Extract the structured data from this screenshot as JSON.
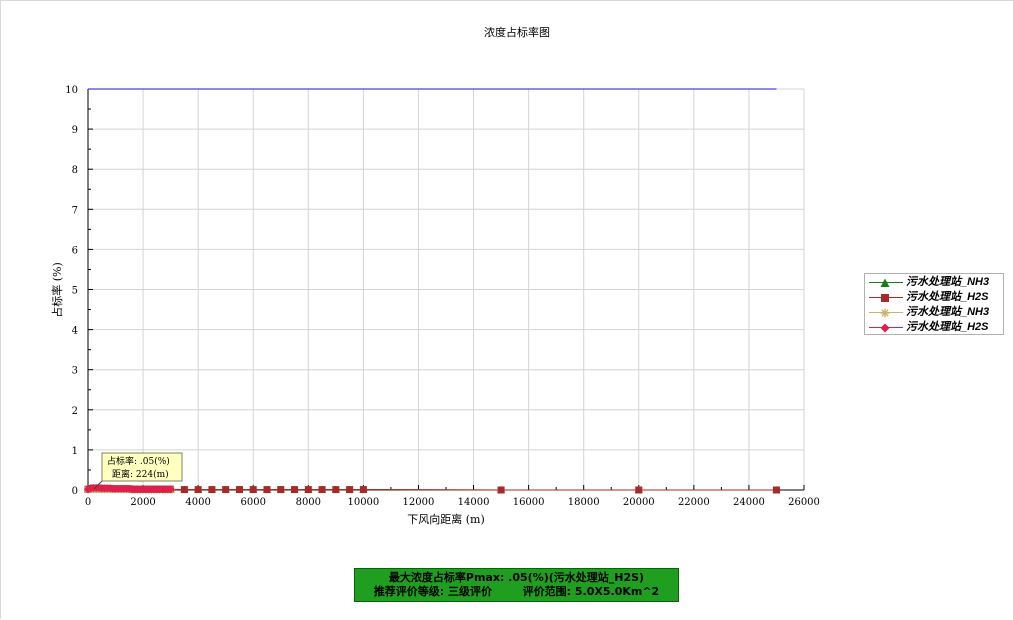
{
  "chart_data": {
    "type": "line",
    "title": "浓度占标率图",
    "xlabel": "下风向距离 (m)",
    "ylabel": "占标率 (%)",
    "xlim": [
      0,
      26000
    ],
    "ylim": [
      0,
      10
    ],
    "x_ticks": [
      0,
      2000,
      4000,
      6000,
      8000,
      10000,
      12000,
      14000,
      16000,
      18000,
      20000,
      22000,
      24000,
      26000
    ],
    "y_ticks": [
      0,
      1,
      2,
      3,
      4,
      5,
      6,
      7,
      8,
      9,
      10
    ],
    "grid": true,
    "legend_position": "right",
    "series": [
      {
        "name": "污水处理站_NH3",
        "color": "#1a7a1a",
        "marker": "triangle",
        "x": [
          0,
          100,
          200,
          300,
          400,
          500,
          600,
          700,
          800,
          900,
          1000,
          1100,
          1200,
          1300,
          1400,
          1500,
          1600,
          1700,
          1800,
          1900,
          2000,
          2100,
          2200,
          2300,
          2400,
          2500,
          2600,
          2700,
          2800,
          2900,
          3000,
          3500,
          4000,
          4500,
          5000,
          5500,
          6000,
          6500,
          7000,
          7500,
          8000,
          8500,
          9000,
          9500,
          10000,
          15000,
          20000,
          25000
        ],
        "y": [
          0.01,
          0.02,
          0.02,
          0.02,
          0.02,
          0.02,
          0.02,
          0.02,
          0.02,
          0.02,
          0.02,
          0.02,
          0.02,
          0.02,
          0.02,
          0.02,
          0.01,
          0.01,
          0.01,
          0.01,
          0.01,
          0.01,
          0.01,
          0.01,
          0.01,
          0.01,
          0.01,
          0.01,
          0.01,
          0.01,
          0.01,
          0.01,
          0.01,
          0.01,
          0.01,
          0.01,
          0.01,
          0.01,
          0.01,
          0.01,
          0.01,
          0.01,
          0.01,
          0.01,
          0.01,
          0.0,
          0.0,
          0.0
        ]
      },
      {
        "name": "污水处理站_H2S",
        "color": "#a52a2a",
        "marker": "square",
        "x": [
          0,
          100,
          200,
          300,
          400,
          500,
          600,
          700,
          800,
          900,
          1000,
          1100,
          1200,
          1300,
          1400,
          1500,
          1600,
          1700,
          1800,
          1900,
          2000,
          2100,
          2200,
          2300,
          2400,
          2500,
          2600,
          2700,
          2800,
          2900,
          3000,
          3500,
          4000,
          4500,
          5000,
          5500,
          6000,
          6500,
          7000,
          7500,
          8000,
          8500,
          9000,
          9500,
          10000,
          15000,
          20000,
          25000
        ],
        "y": [
          0.02,
          0.04,
          0.05,
          0.05,
          0.05,
          0.04,
          0.04,
          0.04,
          0.04,
          0.03,
          0.03,
          0.03,
          0.03,
          0.03,
          0.03,
          0.03,
          0.02,
          0.02,
          0.02,
          0.02,
          0.02,
          0.02,
          0.02,
          0.02,
          0.02,
          0.02,
          0.02,
          0.02,
          0.02,
          0.02,
          0.02,
          0.01,
          0.01,
          0.01,
          0.01,
          0.01,
          0.01,
          0.01,
          0.01,
          0.01,
          0.01,
          0.01,
          0.01,
          0.01,
          0.01,
          0.0,
          0.0,
          0.0
        ]
      },
      {
        "name": "污水处理站_NH3",
        "color": "#c8b46a",
        "marker": "star",
        "x": [
          0,
          100,
          200,
          300,
          400,
          500,
          600,
          700,
          800,
          900,
          1000,
          1100,
          1200,
          1300,
          1400,
          1500,
          1600,
          1700,
          1800,
          1900,
          2000,
          2100,
          2200,
          2300,
          2400,
          2500,
          2600,
          2700,
          2800,
          2900,
          3000
        ],
        "y": [
          0.01,
          0.02,
          0.02,
          0.02,
          0.02,
          0.02,
          0.02,
          0.02,
          0.02,
          0.02,
          0.02,
          0.02,
          0.02,
          0.02,
          0.02,
          0.02,
          0.01,
          0.01,
          0.01,
          0.01,
          0.01,
          0.01,
          0.01,
          0.01,
          0.01,
          0.01,
          0.01,
          0.01,
          0.01,
          0.01,
          0.01
        ]
      },
      {
        "name": "污水处理站_H2S",
        "color": "#e0204a",
        "marker": "diamond",
        "x": [
          0,
          100,
          200,
          300,
          400,
          500,
          600,
          700,
          800,
          900,
          1000,
          1100,
          1200,
          1300,
          1400,
          1500,
          1600,
          1700,
          1800,
          1900,
          2000,
          2100,
          2200,
          2300,
          2400,
          2500,
          2600,
          2700,
          2800,
          2900,
          3000
        ],
        "y": [
          0.02,
          0.04,
          0.05,
          0.05,
          0.05,
          0.04,
          0.04,
          0.04,
          0.04,
          0.03,
          0.03,
          0.03,
          0.03,
          0.03,
          0.03,
          0.03,
          0.02,
          0.02,
          0.02,
          0.02,
          0.02,
          0.02,
          0.02,
          0.02,
          0.02,
          0.02,
          0.02,
          0.02,
          0.02,
          0.02,
          0.02
        ]
      }
    ],
    "reference_line": {
      "y": 10,
      "x_range": [
        0,
        25000
      ],
      "color": "#1a1acc"
    },
    "annotation": {
      "line1": "占标率: .05(%)",
      "line2": "距离: 224(m)",
      "x": 224,
      "y": 0.05
    }
  },
  "info_box": {
    "line1": "最大浓度占标率Pmax: .05(%)(污水处理站_H2S)",
    "line2": "推荐评价等级: 三级评价        评价范围: 5.0X5.0Km^2",
    "background": "#1f9e1f"
  }
}
